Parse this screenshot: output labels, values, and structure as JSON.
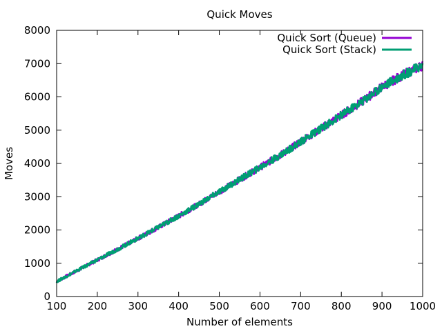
{
  "chart_data": {
    "type": "line",
    "title": "Quick Moves",
    "xlabel": "Number of elements",
    "ylabel": "Moves",
    "xlim": [
      100,
      1000
    ],
    "ylim": [
      0,
      8000
    ],
    "xticks": [
      100,
      200,
      300,
      400,
      500,
      600,
      700,
      800,
      900,
      1000
    ],
    "yticks": [
      0,
      1000,
      2000,
      3000,
      4000,
      5000,
      6000,
      7000,
      8000
    ],
    "grid": false,
    "legend_position": "top-right",
    "series": [
      {
        "name": "Quick Sort (Queue)",
        "color": "#9400d3",
        "x": [
          100,
          150,
          200,
          250,
          300,
          350,
          400,
          450,
          500,
          550,
          600,
          650,
          700,
          750,
          800,
          850,
          900,
          950,
          1000
        ],
        "values": [
          450,
          780,
          1100,
          1420,
          1750,
          2080,
          2420,
          2780,
          3150,
          3520,
          3880,
          4250,
          4650,
          5050,
          5450,
          5850,
          6300,
          6650,
          6950
        ]
      },
      {
        "name": "Quick Sort (Stack)",
        "color": "#009e73",
        "x": [
          100,
          150,
          200,
          250,
          300,
          350,
          400,
          450,
          500,
          550,
          600,
          650,
          700,
          750,
          800,
          850,
          900,
          950,
          1000
        ],
        "values": [
          450,
          780,
          1100,
          1420,
          1750,
          2080,
          2420,
          2780,
          3150,
          3520,
          3880,
          4250,
          4650,
          5050,
          5450,
          5850,
          6300,
          6650,
          6950
        ]
      }
    ]
  }
}
